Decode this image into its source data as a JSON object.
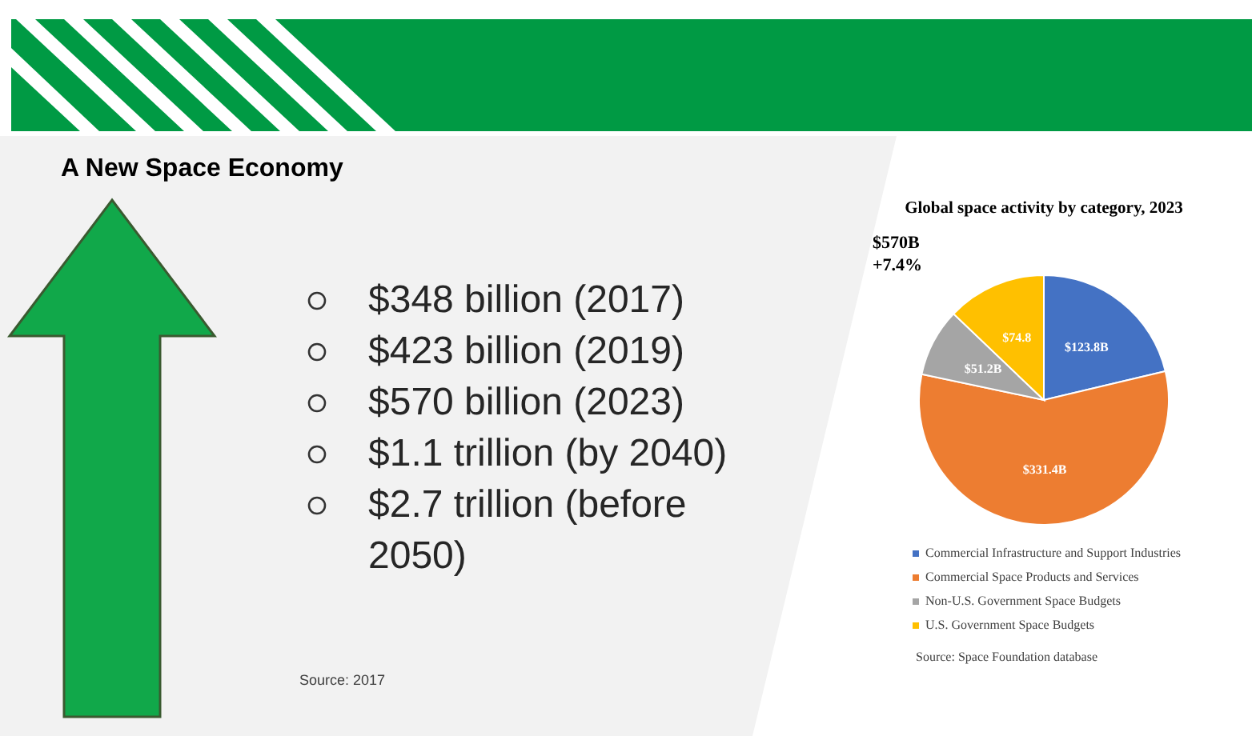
{
  "chart_data": {
    "type": "pie",
    "title": "A New Space Economy",
    "subtitle": "Global space activity by category, 2023",
    "categories": [
      "Commercial Infrastructure and Support Industries",
      "Commercial Space Products and Services",
      "Non-U.S. Government Space Budgets",
      "U.S. Government Space Budgets"
    ],
    "values": [
      123.8,
      331.4,
      51.2,
      74.8
    ],
    "colors": [
      "#4472c4",
      "#ed7d31",
      "#a5a5a5",
      "#ffc000"
    ],
    "value_labels": [
      "$123.8B",
      "$331.4B",
      "$51.2B",
      "$74.8"
    ],
    "legend": "bottom",
    "annotations": [
      "$570B",
      "+7.4%",
      "$348 billion (2017)",
      "$423 billion (2019)",
      "$570 billion (2023)",
      "$1.1 trillion (by 2040)",
      "$2.7 trillion (before 2050)",
      "Source: 2017",
      "Source: Space Foundation database"
    ]
  }
}
